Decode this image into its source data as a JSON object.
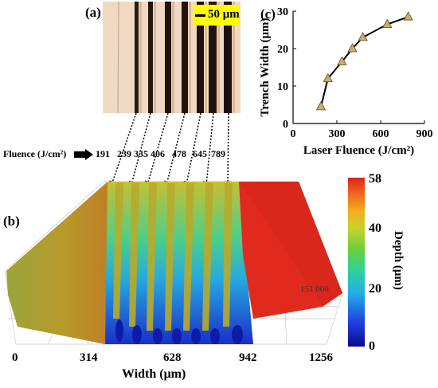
{
  "panels": {
    "a": "(a)",
    "b": "(b)",
    "c": "(c)"
  },
  "micrograph": {
    "scale_label": "50 μm"
  },
  "fluence_row": {
    "label": "Fluence (J/cm²)",
    "values": [
      "191",
      "239",
      "335",
      "406",
      "478",
      "645",
      "789"
    ]
  },
  "surface_plot": {
    "x_tick_labels": [
      "0",
      "314",
      "628",
      "942",
      "1256"
    ],
    "x_label": "Width (μm)",
    "y_axis_label": "151 000",
    "colorbar": {
      "label": "Depth (μm)",
      "ticks": [
        "58",
        "40",
        "20",
        "0"
      ],
      "colors": [
        "#0a0a8c",
        "#1f3fe0",
        "#25b0e8",
        "#2ed19a",
        "#6fcf3a",
        "#c8d22b",
        "#f0b020",
        "#f26a1e",
        "#d9261c"
      ]
    }
  },
  "chart_data": {
    "type": "line",
    "x": [
      191,
      239,
      335,
      406,
      478,
      645,
      789
    ],
    "y": [
      4.5,
      12,
      16.5,
      20,
      23,
      26.5,
      28.5
    ],
    "xlabel": "Laser Fluence (J/cm²)",
    "ylabel": "Trench Width (μm)",
    "xlim": [
      0,
      900
    ],
    "ylim": [
      0,
      30
    ],
    "x_ticks": [
      0,
      300,
      600,
      900
    ],
    "y_ticks": [
      0,
      10,
      20,
      30
    ],
    "marker": "triangle",
    "marker_color": "#c9b06a",
    "line_color": "#000000",
    "grid": false
  }
}
